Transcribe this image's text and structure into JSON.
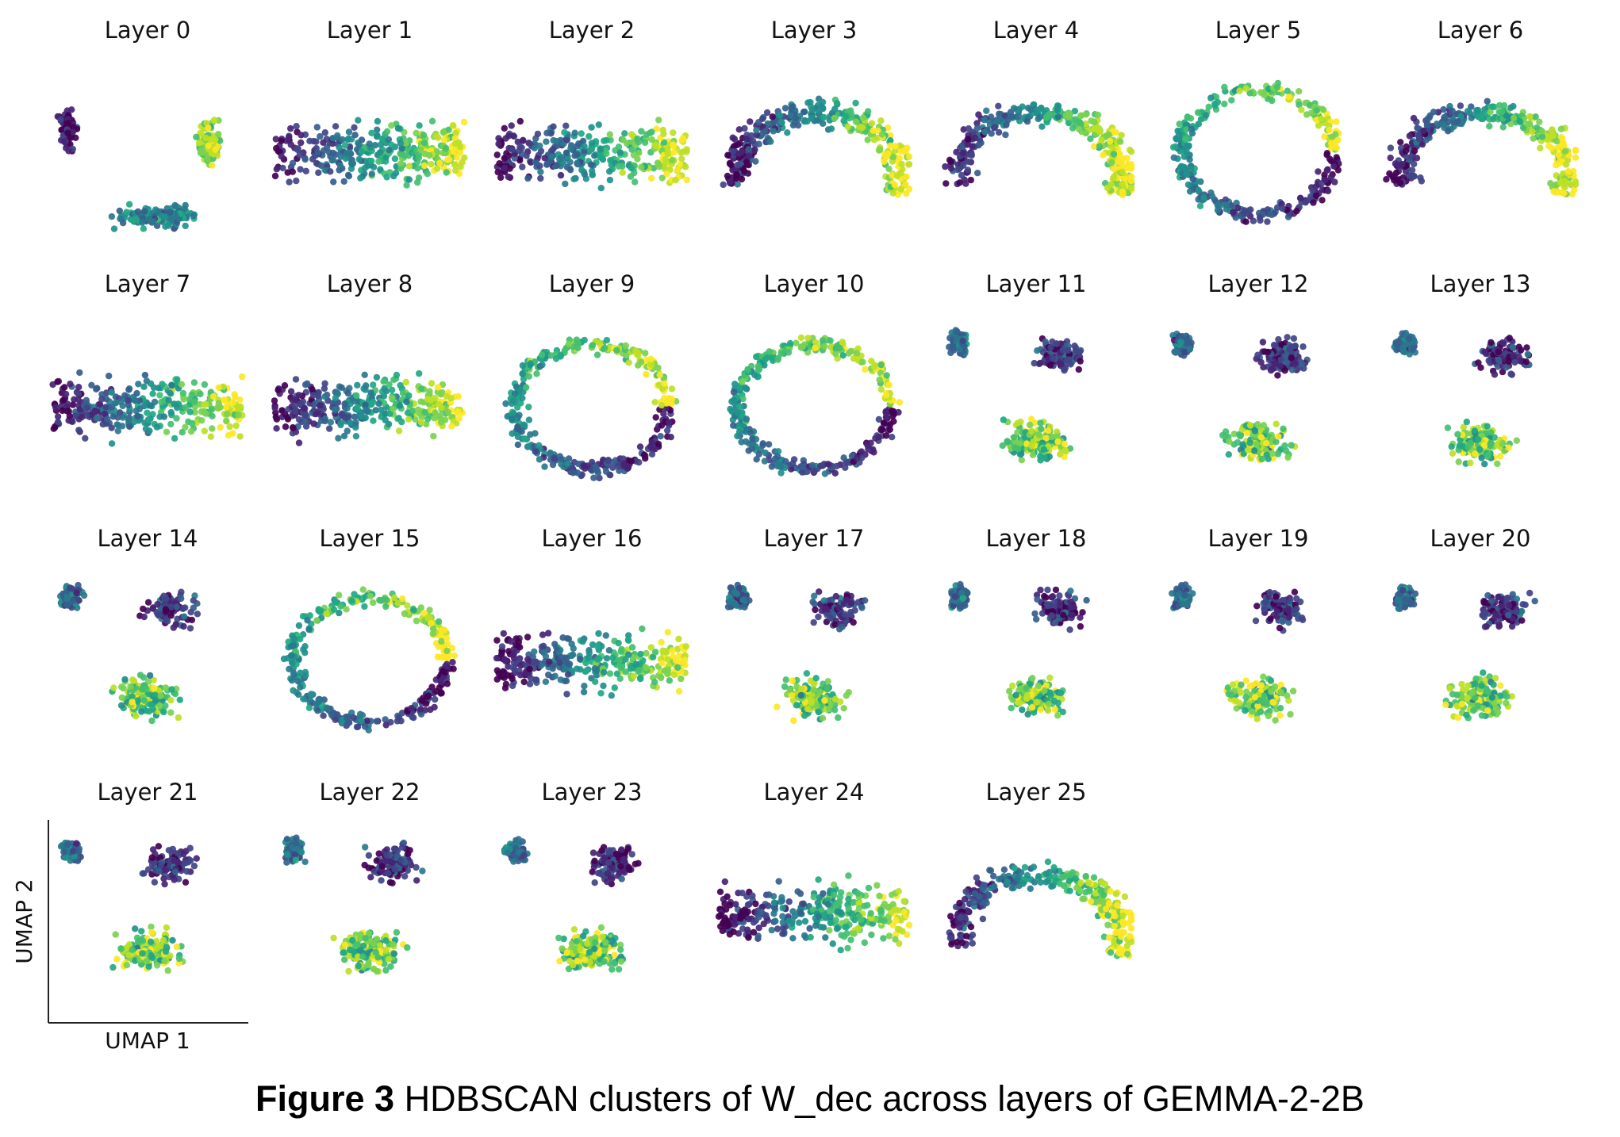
{
  "figure": {
    "caption_label": "Figure 3",
    "caption_text": "HDBSCAN clusters of W_dec across layers of GEMMA-2-2B"
  },
  "chart_data": {
    "type": "scatter",
    "layout": "small-multiples",
    "grid": false,
    "colormap": "viridis",
    "palette": [
      "#440154",
      "#482475",
      "#414487",
      "#355f8d",
      "#2a788e",
      "#21918c",
      "#22a884",
      "#44bf70",
      "#7ad151",
      "#bddf26",
      "#fde725"
    ],
    "xlabel": "UMAP 1",
    "ylabel": "UMAP 2",
    "axes_shown_on": "Layer 21",
    "panels": [
      {
        "title": "Layer 0",
        "shape": "scattered"
      },
      {
        "title": "Layer 1",
        "shape": "band"
      },
      {
        "title": "Layer 2",
        "shape": "band"
      },
      {
        "title": "Layer 3",
        "shape": "arc"
      },
      {
        "title": "Layer 4",
        "shape": "arc"
      },
      {
        "title": "Layer 5",
        "shape": "ring"
      },
      {
        "title": "Layer 6",
        "shape": "arc"
      },
      {
        "title": "Layer 7",
        "shape": "band"
      },
      {
        "title": "Layer 8",
        "shape": "band"
      },
      {
        "title": "Layer 9",
        "shape": "ring"
      },
      {
        "title": "Layer 10",
        "shape": "ring"
      },
      {
        "title": "Layer 11",
        "shape": "triangle"
      },
      {
        "title": "Layer 12",
        "shape": "triangle"
      },
      {
        "title": "Layer 13",
        "shape": "triangle"
      },
      {
        "title": "Layer 14",
        "shape": "triangle"
      },
      {
        "title": "Layer 15",
        "shape": "ring"
      },
      {
        "title": "Layer 16",
        "shape": "band"
      },
      {
        "title": "Layer 17",
        "shape": "triangle"
      },
      {
        "title": "Layer 18",
        "shape": "triangle"
      },
      {
        "title": "Layer 19",
        "shape": "triangle"
      },
      {
        "title": "Layer 20",
        "shape": "triangle"
      },
      {
        "title": "Layer 21",
        "shape": "triangle"
      },
      {
        "title": "Layer 22",
        "shape": "triangle"
      },
      {
        "title": "Layer 23",
        "shape": "triangle"
      },
      {
        "title": "Layer 24",
        "shape": "band"
      },
      {
        "title": "Layer 25",
        "shape": "arc"
      }
    ]
  }
}
